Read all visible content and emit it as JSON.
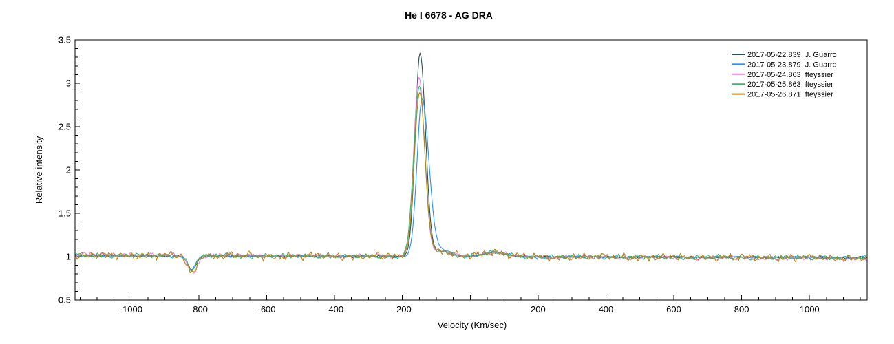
{
  "chart_data": {
    "type": "line",
    "title": "He I 6678 - AG DRA",
    "xlabel": "Velocity (Km/sec)",
    "ylabel": "Relative intensity",
    "xlim": [
      -1165,
      1170
    ],
    "ylim": [
      0.5,
      3.5
    ],
    "x_major_tick_step": 200,
    "x_minor_tick_step": 50,
    "y_major_tick_step": 0.5,
    "y_minor_tick_step": 0.1,
    "x_tick_labels": [
      -1000,
      -800,
      -600,
      -400,
      -200,
      200,
      400,
      600,
      800,
      1000
    ],
    "zero_tick_present_unlabeled": true,
    "y_tick_labels": [
      0.5,
      1,
      1.5,
      2,
      2.5,
      3,
      3.5
    ],
    "grid": false,
    "legend_position": "top-right",
    "axis_color": "#000000",
    "background_color": "#ffffff",
    "continuum_level": 1.0,
    "emission_line_velocity_kms": -150,
    "absorption_feature_velocity_kms": -820,
    "series": [
      {
        "label": "2017-05-22.839  J. Guarro",
        "date": "2017-05-22.839",
        "observer": "J. Guarro",
        "color": "#2F4F4F",
        "continuum": 1.0,
        "peak": {
          "center": -148,
          "height": 2.34,
          "width_left": 20,
          "width_right": 23,
          "apex_value": 3.34
        },
        "absorption": {
          "center": -820,
          "depth": 0.16,
          "width": 17
        },
        "shoulder": {
          "center": -88,
          "height": 0.06,
          "width": 40
        },
        "bump": {
          "center": 68,
          "height": 0.05,
          "width": 48
        },
        "noise_amplitude": 0.012,
        "tilt_per_kms": -8e-06,
        "seed": 11
      },
      {
        "label": "2017-05-23.879  J. Guarro",
        "date": "2017-05-23.879",
        "observer": "J. Guarro",
        "color": "#1E90FF",
        "continuum": 1.0,
        "peak": {
          "center": -142,
          "height": 1.81,
          "width_left": 21,
          "width_right": 28,
          "apex_value": 2.81
        },
        "absorption": {
          "center": -822,
          "depth": 0.15,
          "width": 17
        },
        "shoulder": {
          "center": -85,
          "height": 0.07,
          "width": 42
        },
        "bump": {
          "center": 68,
          "height": 0.05,
          "width": 48
        },
        "noise_amplitude": 0.012,
        "tilt_per_kms": -8e-06,
        "seed": 22
      },
      {
        "label": "2017-05-24.863  fteyssier",
        "date": "2017-05-24.863",
        "observer": "fteyssier",
        "color": "#EE82EE",
        "continuum": 1.0,
        "peak": {
          "center": -151,
          "height": 2.06,
          "width_left": 22,
          "width_right": 23,
          "apex_value": 3.06
        },
        "absorption": {
          "center": -818,
          "depth": 0.21,
          "width": 18
        },
        "shoulder": {
          "center": -88,
          "height": 0.06,
          "width": 40
        },
        "bump": {
          "center": 68,
          "height": 0.05,
          "width": 48
        },
        "noise_amplitude": 0.024,
        "tilt_per_kms": -2e-05,
        "seed": 33
      },
      {
        "label": "2017-05-25.863  fteyssier",
        "date": "2017-05-25.863",
        "observer": "fteyssier",
        "color": "#3CB371",
        "continuum": 1.0,
        "peak": {
          "center": -150,
          "height": 1.96,
          "width_left": 23,
          "width_right": 23,
          "apex_value": 2.96
        },
        "absorption": {
          "center": -820,
          "depth": 0.16,
          "width": 17
        },
        "shoulder": {
          "center": -88,
          "height": 0.06,
          "width": 40
        },
        "bump": {
          "center": 68,
          "height": 0.05,
          "width": 48
        },
        "noise_amplitude": 0.024,
        "tilt_per_kms": -1.2e-05,
        "seed": 44
      },
      {
        "label": "2017-05-26.871  fteyssier",
        "date": "2017-05-26.871",
        "observer": "fteyssier",
        "color": "#B8860B",
        "continuum": 1.0,
        "peak": {
          "center": -149,
          "height": 1.89,
          "width_left": 22,
          "width_right": 23,
          "apex_value": 2.89
        },
        "absorption": {
          "center": -821,
          "depth": 0.2,
          "width": 18
        },
        "shoulder": {
          "center": -88,
          "height": 0.06,
          "width": 40
        },
        "bump": {
          "center": 68,
          "height": 0.06,
          "width": 48
        },
        "noise_amplitude": 0.038,
        "tilt_per_kms": -1.2e-05,
        "seed": 55
      }
    ]
  }
}
